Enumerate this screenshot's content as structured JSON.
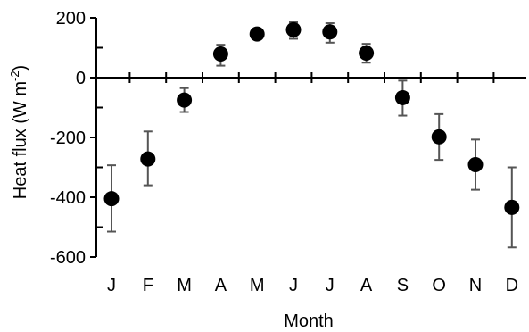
{
  "chart_data": {
    "type": "scatter",
    "title": "",
    "xlabel": "Month",
    "ylabel": "Heat flux (W m",
    "ylabel_sup": "-2",
    "ylabel_close": ")",
    "ylim": [
      -600,
      200
    ],
    "y_ticks": [
      200,
      0,
      -200,
      -400,
      -600
    ],
    "y_tick_labels": [
      "200",
      "0",
      "-200",
      "-400",
      "-600"
    ],
    "categories": [
      "J",
      "F",
      "M",
      "A",
      "M",
      "J",
      "J",
      "A",
      "S",
      "O",
      "N",
      "D"
    ],
    "series": [
      {
        "values": [
          -405,
          -272,
          -75,
          79,
          146,
          160,
          153,
          82,
          -67,
          -198,
          -291,
          -434
        ],
        "error_low": [
          -515,
          -360,
          -115,
          40,
          135,
          130,
          117,
          50,
          -127,
          -275,
          -375,
          -568
        ],
        "error_high": [
          -293,
          -180,
          -35,
          110,
          158,
          185,
          182,
          113,
          -10,
          -122,
          -207,
          -300
        ]
      }
    ],
    "grid": false,
    "legend": "none",
    "colors": {
      "marker": "#000000",
      "error_bar": "#555555",
      "axis": "#000000"
    }
  }
}
